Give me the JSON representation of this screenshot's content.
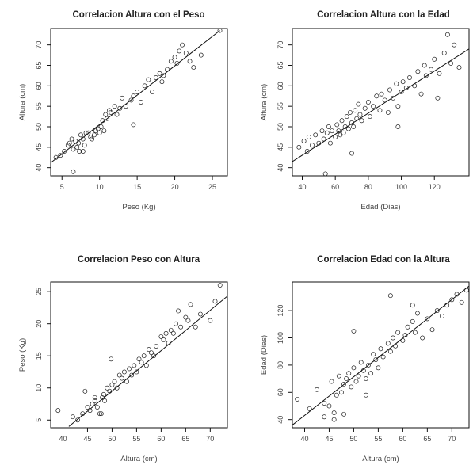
{
  "chart_data": [
    {
      "type": "scatter",
      "title": "Correlacion Altura con el Peso",
      "xlabel": "Peso (Kg)",
      "ylabel": "Altura (cm)",
      "xlim": [
        3.5,
        27
      ],
      "ylim": [
        38,
        74
      ],
      "xticks": [
        "5",
        "10",
        "15",
        "20",
        "25"
      ],
      "yticks": [
        "40",
        "45",
        "50",
        "55",
        "60",
        "65",
        "70"
      ],
      "fit_line": {
        "x": [
          3.5,
          26
        ],
        "y": [
          41.2,
          73.5
        ]
      },
      "x": [
        4.2,
        4.8,
        5.3,
        5.8,
        6.0,
        6.3,
        6.5,
        6.8,
        7.0,
        7.2,
        7.3,
        7.5,
        7.8,
        8.0,
        8.2,
        8.5,
        8.8,
        9.0,
        9.3,
        9.5,
        9.8,
        10.0,
        10.2,
        10.4,
        10.6,
        10.8,
        11.0,
        11.3,
        11.5,
        12.0,
        12.3,
        12.7,
        13.0,
        13.5,
        14.2,
        14.5,
        15.0,
        15.5,
        16.0,
        16.5,
        17.0,
        17.5,
        18.0,
        18.3,
        18.5,
        19.0,
        19.5,
        20.0,
        20.3,
        20.6,
        21.0,
        21.5,
        22.0,
        22.5,
        23.5,
        26.0,
        6.5,
        7.8,
        14.5
      ],
      "y": [
        42.5,
        43.0,
        44.0,
        45.5,
        46.0,
        47.0,
        44.5,
        46.5,
        45.0,
        46.0,
        44.0,
        48.0,
        47.0,
        45.5,
        48.5,
        48.5,
        47.5,
        47.0,
        48.0,
        49.0,
        49.5,
        48.5,
        50.0,
        51.5,
        49.0,
        53.0,
        52.0,
        54.0,
        53.5,
        55.0,
        53.0,
        54.5,
        57.0,
        55.0,
        56.5,
        57.5,
        58.5,
        56.0,
        60.0,
        61.5,
        58.5,
        62.0,
        63.0,
        61.0,
        62.5,
        64.0,
        66.0,
        67.0,
        65.5,
        68.5,
        70.0,
        68.0,
        66.0,
        64.5,
        67.5,
        73.5,
        39.0,
        44.0,
        50.5
      ]
    },
    {
      "type": "scatter",
      "title": "Correlacion Altura con la Edad",
      "xlabel": "Edad (Dias)",
      "ylabel": "Altura (cm)",
      "xlim": [
        34,
        141
      ],
      "ylim": [
        38,
        74
      ],
      "xticks": [
        "40",
        "60",
        "80",
        "100",
        "120"
      ],
      "yticks": [
        "40",
        "45",
        "50",
        "55",
        "60",
        "65",
        "70"
      ],
      "fit_line": {
        "x": [
          34,
          141
        ],
        "y": [
          41.5,
          69.0
        ]
      },
      "x": [
        38,
        41,
        43,
        44,
        46,
        48,
        50,
        52,
        53,
        55,
        56,
        57,
        58,
        60,
        61,
        62,
        63,
        64,
        65,
        66,
        67,
        68,
        69,
        70,
        71,
        72,
        73,
        74,
        75,
        76,
        78,
        80,
        81,
        83,
        85,
        87,
        88,
        90,
        92,
        93,
        95,
        97,
        98,
        100,
        101,
        103,
        105,
        108,
        110,
        112,
        114,
        115,
        118,
        120,
        123,
        126,
        128,
        130,
        132,
        135,
        54,
        70,
        98,
        122
      ],
      "y": [
        45.0,
        46.5,
        44.0,
        47.5,
        45.5,
        48.0,
        46.0,
        49.0,
        47.0,
        48.5,
        50.0,
        46.0,
        49.0,
        47.5,
        50.5,
        49.0,
        48.0,
        51.5,
        48.5,
        50.0,
        52.5,
        49.5,
        53.5,
        51.0,
        50.0,
        54.0,
        52.0,
        55.5,
        53.0,
        51.5,
        54.5,
        56.0,
        52.5,
        55.0,
        57.5,
        54.0,
        58.0,
        56.5,
        53.5,
        59.0,
        57.0,
        60.5,
        55.0,
        58.5,
        61.0,
        59.5,
        62.0,
        60.0,
        63.5,
        58.0,
        65.0,
        62.5,
        64.0,
        66.5,
        63.0,
        68.0,
        72.5,
        65.5,
        70.0,
        64.5,
        38.5,
        43.5,
        50.0,
        57.0
      ]
    },
    {
      "type": "scatter",
      "title": "Correlacion Peso con Altura",
      "xlabel": "Altura (cm)",
      "ylabel": "Peso (Kg)",
      "xlim": [
        37.5,
        73.5
      ],
      "ylim": [
        3.8,
        26.5
      ],
      "xticks": [
        "40",
        "45",
        "50",
        "55",
        "60",
        "65",
        "70"
      ],
      "yticks": [
        "5",
        "10",
        "15",
        "20",
        "25"
      ],
      "fit_line": {
        "x": [
          41.2,
          73.5
        ],
        "y": [
          4.0,
          24.3
        ]
      },
      "x": [
        39.0,
        42.0,
        43.0,
        44.0,
        45.0,
        45.5,
        46.0,
        46.5,
        47.0,
        47.5,
        48.0,
        48.3,
        48.5,
        49.0,
        49.5,
        50.0,
        50.5,
        51.0,
        51.5,
        52.0,
        52.5,
        53.0,
        53.5,
        54.0,
        54.5,
        55.0,
        55.5,
        56.0,
        56.5,
        57.0,
        57.5,
        58.0,
        58.5,
        59.0,
        60.0,
        60.5,
        61.0,
        61.5,
        62.0,
        62.5,
        63.0,
        63.5,
        64.0,
        65.0,
        65.5,
        66.0,
        67.0,
        68.0,
        70.0,
        71.0,
        72.0,
        44.5,
        46.5,
        47.8,
        49.8
      ],
      "y": [
        6.5,
        5.5,
        5.0,
        6.0,
        7.0,
        6.5,
        7.5,
        8.0,
        7.0,
        6.0,
        8.5,
        9.0,
        8.0,
        10.0,
        9.5,
        10.5,
        11.0,
        10.0,
        12.0,
        11.5,
        12.5,
        11.0,
        13.0,
        12.0,
        13.5,
        12.5,
        14.5,
        14.0,
        15.0,
        13.5,
        16.0,
        15.5,
        15.0,
        16.5,
        18.0,
        17.5,
        18.5,
        17.0,
        19.0,
        18.5,
        20.0,
        22.0,
        19.5,
        21.0,
        20.5,
        23.0,
        19.5,
        21.5,
        20.5,
        23.5,
        26.0,
        9.5,
        8.5,
        6.0,
        14.5
      ]
    },
    {
      "type": "scatter",
      "title": "Correlacion Edad con la Altura",
      "xlabel": "Altura (cm)",
      "ylabel": "Edad (Dias)",
      "xlim": [
        37.5,
        73.5
      ],
      "ylim": [
        34,
        141
      ],
      "xticks": [
        "40",
        "45",
        "50",
        "55",
        "60",
        "65",
        "70"
      ],
      "yticks": [
        "40",
        "60",
        "80",
        "100",
        "120"
      ],
      "fit_line": {
        "x": [
          37.5,
          73.5
        ],
        "y": [
          36,
          138
        ]
      },
      "x": [
        38.5,
        41.0,
        42.5,
        44.0,
        45.0,
        45.5,
        46.0,
        46.5,
        47.0,
        47.5,
        48.0,
        48.5,
        49.0,
        49.5,
        50.0,
        50.5,
        51.0,
        51.5,
        52.0,
        52.5,
        53.0,
        53.5,
        54.0,
        54.5,
        55.0,
        55.5,
        56.0,
        57.0,
        57.5,
        58.0,
        58.5,
        59.0,
        60.0,
        60.5,
        61.0,
        62.0,
        62.5,
        63.0,
        64.0,
        65.0,
        66.0,
        67.0,
        68.0,
        69.0,
        70.0,
        71.0,
        72.0,
        73.0,
        44.0,
        46.0,
        48.0,
        50.0,
        52.5,
        57.5,
        62.0
      ],
      "y": [
        55,
        48,
        62,
        52,
        50,
        68,
        45,
        58,
        72,
        60,
        66,
        70,
        74,
        64,
        78,
        68,
        72,
        82,
        76,
        70,
        80,
        74,
        88,
        84,
        78,
        92,
        86,
        96,
        90,
        100,
        94,
        104,
        98,
        102,
        108,
        112,
        104,
        118,
        100,
        114,
        106,
        120,
        116,
        124,
        128,
        132,
        126,
        135,
        42,
        40,
        44,
        105,
        58,
        131,
        124
      ]
    }
  ]
}
